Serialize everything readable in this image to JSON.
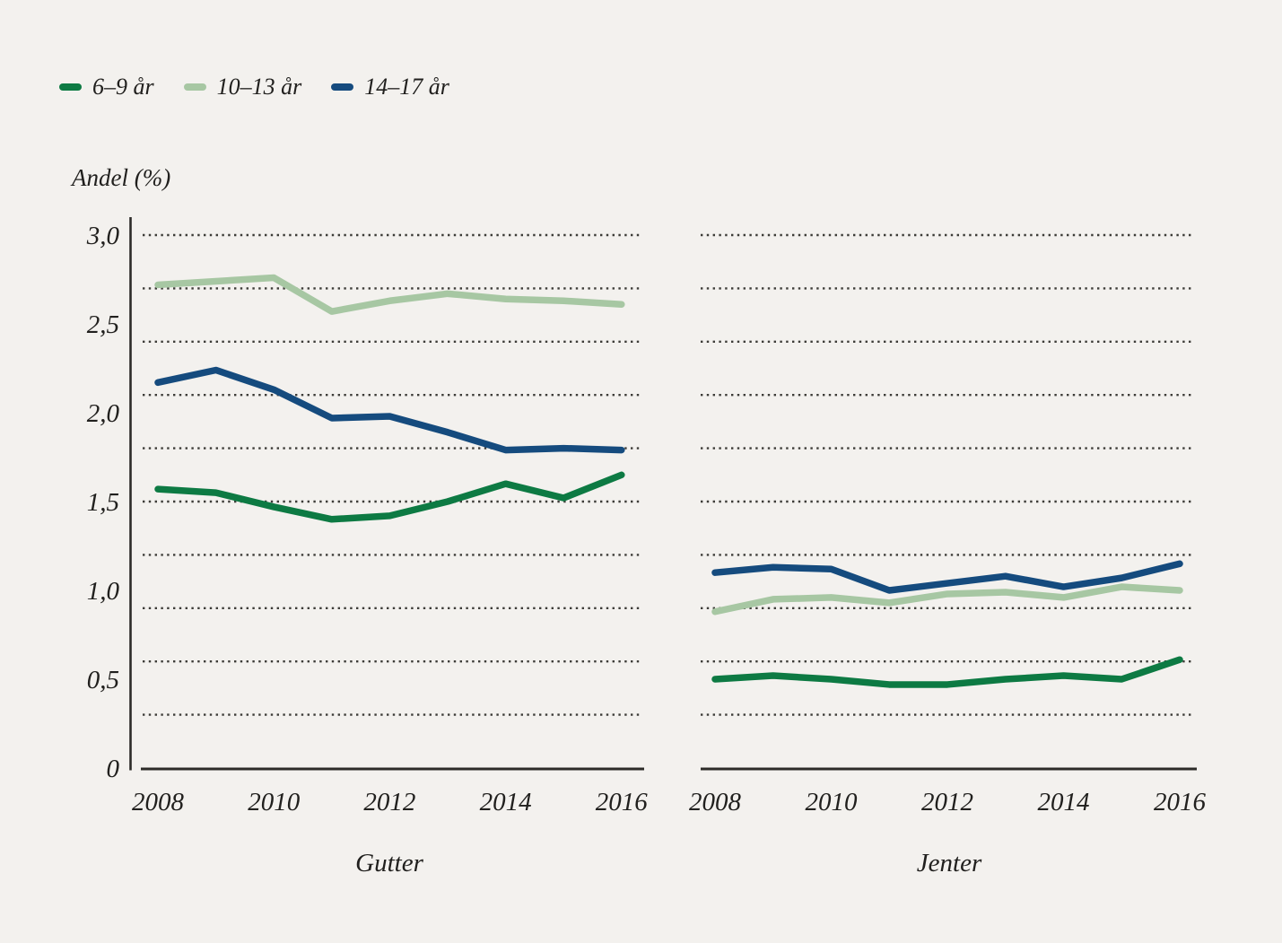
{
  "colors": {
    "background": "#f3f1ee",
    "text": "#21201e",
    "grid": "#3d3c38",
    "axis": "#2c2b28",
    "series_dark_green": "#0d7a43",
    "series_light_green": "#a7c7a3",
    "series_dark_blue": "#154b7e"
  },
  "chart_data": {
    "type": "line",
    "ylabel": "Andel (%)",
    "ylim": [
      0,
      3.0
    ],
    "grid_values": [
      0.3,
      0.6,
      0.9,
      1.2,
      1.5,
      1.8,
      2.1,
      2.4,
      2.7,
      3.0
    ],
    "grid_style": "dotted",
    "legend_position": "top-left",
    "x": [
      2008,
      2009,
      2010,
      2011,
      2012,
      2013,
      2014,
      2015,
      2016
    ],
    "x_tick_labels": [
      "2008",
      "2010",
      "2012",
      "2014",
      "2016"
    ],
    "y_ticks": [
      {
        "value": 0,
        "label": "0"
      },
      {
        "value": 0.5,
        "label": "0,5"
      },
      {
        "value": 1.0,
        "label": "1,0"
      },
      {
        "value": 1.5,
        "label": "1,5"
      },
      {
        "value": 2.0,
        "label": "2,0"
      },
      {
        "value": 2.5,
        "label": "2,5"
      },
      {
        "value": 3.0,
        "label": "3,0"
      }
    ],
    "panels": [
      {
        "title": "Gutter",
        "series": [
          {
            "name": "6–9 år",
            "color": "#0d7a43",
            "values": [
              1.57,
              1.55,
              1.47,
              1.4,
              1.42,
              1.5,
              1.6,
              1.52,
              1.65
            ]
          },
          {
            "name": "10–13 år",
            "color": "#a7c7a3",
            "values": [
              2.72,
              2.74,
              2.76,
              2.57,
              2.63,
              2.67,
              2.64,
              2.63,
              2.61
            ]
          },
          {
            "name": "14–17 år",
            "color": "#154b7e",
            "values": [
              2.17,
              2.24,
              2.13,
              1.97,
              1.98,
              1.89,
              1.79,
              1.8,
              1.79
            ]
          }
        ]
      },
      {
        "title": "Jenter",
        "series": [
          {
            "name": "6–9 år",
            "color": "#0d7a43",
            "values": [
              0.5,
              0.52,
              0.5,
              0.47,
              0.47,
              0.5,
              0.52,
              0.5,
              0.61
            ]
          },
          {
            "name": "10–13 år",
            "color": "#a7c7a3",
            "values": [
              0.88,
              0.95,
              0.96,
              0.93,
              0.98,
              0.99,
              0.96,
              1.02,
              1.0
            ]
          },
          {
            "name": "14–17 år",
            "color": "#154b7e",
            "values": [
              1.1,
              1.13,
              1.12,
              1.0,
              1.04,
              1.08,
              1.02,
              1.07,
              1.15
            ]
          }
        ]
      }
    ]
  }
}
